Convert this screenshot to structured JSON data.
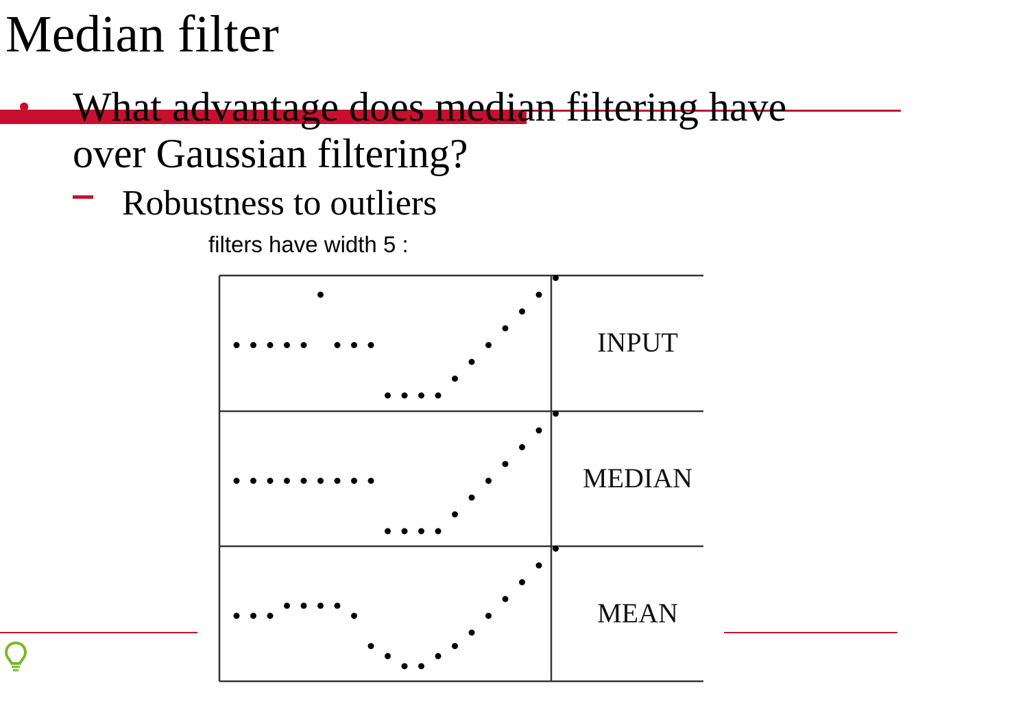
{
  "slide": {
    "title": "Median filter",
    "bullet_text_line1": "What advantage does median filtering have",
    "bullet_text_line2": "over Gaussian filtering?",
    "sub_bullet": "Robustness to outliers"
  },
  "figure": {
    "caption": "filters have width 5 :",
    "rows": [
      {
        "label": "INPUT",
        "values": [
          3,
          3,
          3,
          3,
          3,
          6,
          3,
          3,
          3,
          0,
          0,
          0,
          0,
          1,
          2,
          3,
          4,
          5,
          6,
          7
        ]
      },
      {
        "label": "MEDIAN",
        "values": [
          3,
          3,
          3,
          3,
          3,
          3,
          3,
          3,
          3,
          0,
          0,
          0,
          0,
          1,
          2,
          3,
          4,
          5,
          6,
          7
        ]
      },
      {
        "label": "MEAN",
        "values": [
          3,
          3,
          3,
          3.6,
          3.6,
          3.6,
          3.6,
          3,
          1.2,
          0.6,
          0,
          0,
          0.6,
          1.2,
          2,
          3,
          4,
          5,
          6,
          7
        ]
      }
    ]
  },
  "colors": {
    "accent_red": "#c8102e",
    "bulb_green": "#7ab929"
  },
  "icons": {
    "bullet": "•",
    "bulb": "lightbulb-icon"
  }
}
